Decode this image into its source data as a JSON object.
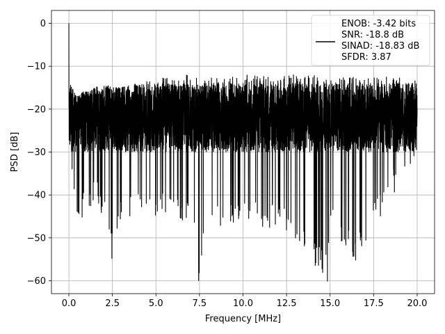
{
  "chart_data": {
    "type": "line",
    "title": "",
    "xlabel": "Frequency [MHz]",
    "ylabel": "PSD [dB]",
    "xlim": [
      -1.0,
      21.0
    ],
    "ylim": [
      -63.0,
      3.0
    ],
    "xticks": [
      0.0,
      2.5,
      5.0,
      7.5,
      10.0,
      12.5,
      15.0,
      17.5,
      20.0
    ],
    "xtick_labels": [
      "0.0",
      "2.5",
      "5.0",
      "7.5",
      "10.0",
      "12.5",
      "15.0",
      "17.5",
      "20.0"
    ],
    "yticks": [
      0,
      -10,
      -20,
      -30,
      -40,
      -50,
      -60
    ],
    "ytick_labels": [
      "0",
      "−10",
      "−20",
      "−30",
      "−40",
      "−50",
      "−60"
    ],
    "grid": true,
    "legend_position": "top-right",
    "legend": [
      "ENOB: -3.42 bits",
      "SNR: -18.8 dB",
      "SINAD: -18.83 dB",
      "SFDR: 3.87"
    ],
    "series": [
      {
        "color": "#000000",
        "noise_floor_db": [
          -30,
          -14
        ],
        "x": [
          0.0,
          0.02,
          0.04,
          0.06,
          0.1,
          0.2,
          0.3,
          0.4,
          0.6,
          0.8,
          1.0,
          1.2,
          1.5,
          2.0,
          2.47,
          3.0,
          5.0,
          6.4,
          7.0,
          7.45,
          8.0,
          8.7,
          10.0,
          12.5,
          14.85,
          15.0,
          16.47,
          17.5,
          20.0
        ],
        "envelope_upper": [
          0,
          -4,
          -8,
          -10,
          -14,
          -15,
          -16,
          -17,
          -17,
          -16,
          -16,
          -16,
          -15,
          -14,
          -15,
          -15,
          -13,
          -12,
          -12,
          -13,
          -12,
          -13,
          -12,
          -12,
          -12,
          -12,
          -12,
          -12,
          -13
        ],
        "envelope_lower": [
          -10,
          -35,
          -30,
          -33,
          -33,
          -38,
          -40,
          -42,
          -49,
          -45,
          -43,
          -45,
          -42,
          -45,
          -54.8,
          -45,
          -45,
          -47,
          -45,
          -60,
          -45,
          -49,
          -46,
          -49,
          -60.1,
          -48,
          -55.2,
          -48,
          -30
        ]
      }
    ]
  }
}
